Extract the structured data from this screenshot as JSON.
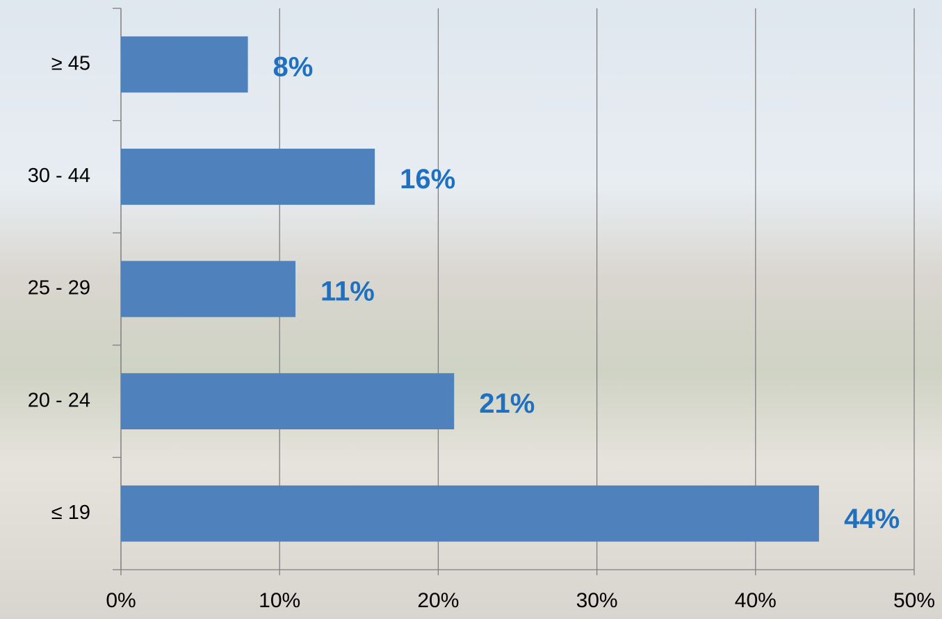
{
  "chart_data": {
    "type": "bar",
    "orientation": "horizontal",
    "categories": [
      "≥ 45",
      "30 - 44",
      "25 - 29",
      "20 - 24",
      "≤ 19"
    ],
    "values": [
      8,
      16,
      11,
      21,
      44
    ],
    "value_labels": [
      "8%",
      "16%",
      "11%",
      "21%",
      "44%"
    ],
    "color": "#4f81bd",
    "label_color": "#1f70c1",
    "xlim": [
      0,
      50
    ],
    "xticks": [
      {
        "value": 0,
        "label": "0%"
      },
      {
        "value": 10,
        "label": "10%"
      },
      {
        "value": 20,
        "label": "20%"
      },
      {
        "value": 30,
        "label": "30%"
      },
      {
        "value": 40,
        "label": "40%"
      },
      {
        "value": 50,
        "label": "50%"
      }
    ],
    "grid": true
  }
}
